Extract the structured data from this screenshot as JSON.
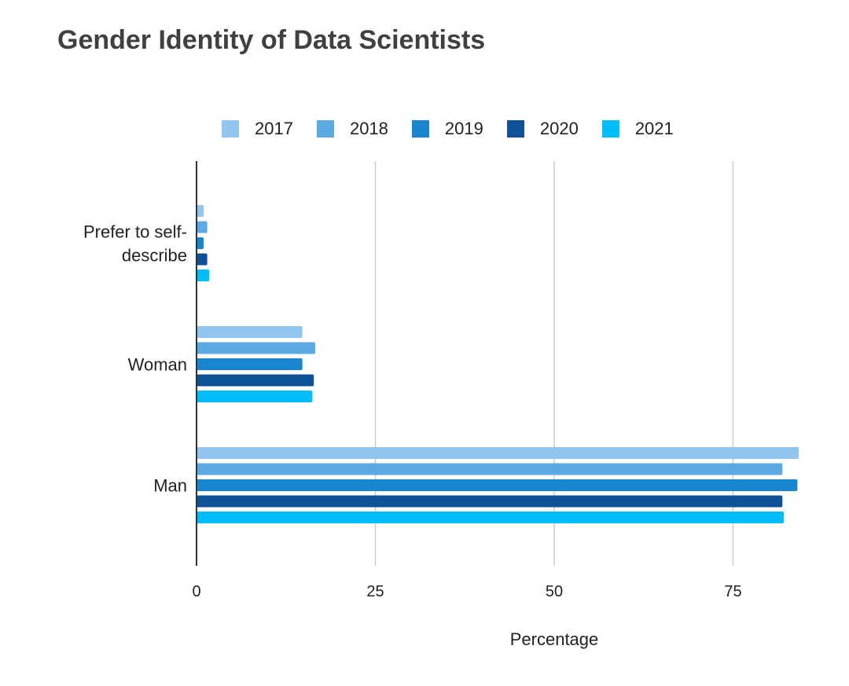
{
  "chart_data": {
    "type": "bar",
    "orientation": "horizontal",
    "title": "Gender Identity of Data Scientists",
    "xlabel": "Percentage",
    "ylabel": "",
    "xlim": [
      0,
      85
    ],
    "xticks": [
      "0",
      "25",
      "50",
      "75"
    ],
    "grid": true,
    "legend_position": "top",
    "categories": [
      "Prefer to self-describe",
      "Woman",
      "Man"
    ],
    "category_lines": [
      [
        "Prefer to self-",
        "describe"
      ],
      [
        "Woman"
      ],
      [
        "Man"
      ]
    ],
    "series": [
      {
        "name": "2017",
        "color": "#92C6EE",
        "values": [
          1.0,
          14.8,
          84.2
        ]
      },
      {
        "name": "2018",
        "color": "#5BAAE3",
        "values": [
          1.5,
          16.6,
          81.9
        ]
      },
      {
        "name": "2019",
        "color": "#1A86D0",
        "values": [
          1.0,
          14.8,
          84.0
        ]
      },
      {
        "name": "2020",
        "color": "#0E5197",
        "values": [
          1.5,
          16.4,
          81.9
        ]
      },
      {
        "name": "2021",
        "color": "#00BFF8",
        "values": [
          1.8,
          16.2,
          82.1
        ]
      }
    ]
  }
}
